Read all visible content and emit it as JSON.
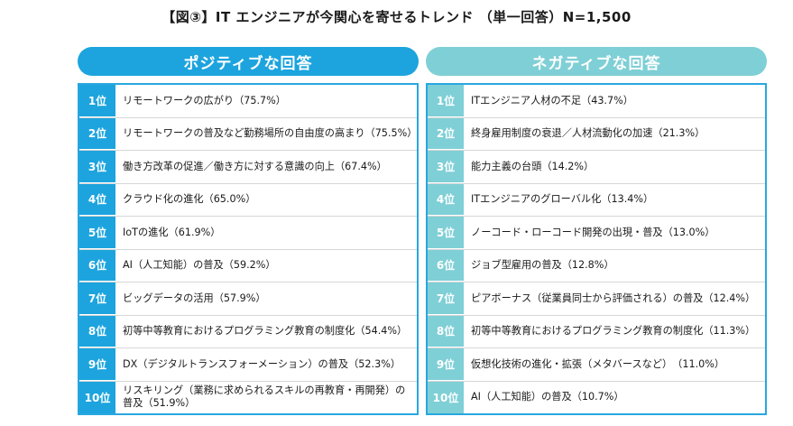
{
  "title": "【図③】IT エンジニアが今関心を寄せるトレンド （単一回答）N=1,500",
  "colors": {
    "positive": "#1da4de",
    "negative": "#7fcfd6",
    "panel_border": "#29a7df",
    "row_divider": "#d6d6d6"
  },
  "chart_data": [
    {
      "type": "table",
      "title": "ポジティブな回答",
      "ranks": [
        "1位",
        "2位",
        "3位",
        "4位",
        "5位",
        "6位",
        "7位",
        "8位",
        "9位",
        "10位"
      ],
      "items": [
        "リモートワークの広がり（75.7%）",
        "リモートワークの普及など勤務場所の自由度の高まり（75.5%）",
        "働き方改革の促進／働き方に対する意識の向上（67.4%）",
        "クラウド化の進化（65.0%）",
        "IoTの進化（61.9%）",
        "AI（人工知能）の普及（59.2%）",
        "ビッグデータの活用（57.9%）",
        "初等中等教育におけるプログラミング教育の制度化（54.4%）",
        "DX（デジタルトランスフォーメーション）の普及（52.3%）",
        "リスキリング（業務に求められるスキルの再教育・再開発）の普及（51.9%）"
      ],
      "values": [
        75.7,
        75.5,
        67.4,
        65.0,
        61.9,
        59.2,
        57.9,
        54.4,
        52.3,
        51.9
      ],
      "unit": "%"
    },
    {
      "type": "table",
      "title": "ネガティブな回答",
      "ranks": [
        "1位",
        "2位",
        "3位",
        "4位",
        "5位",
        "6位",
        "7位",
        "8位",
        "9位",
        "10位"
      ],
      "items": [
        "ITエンジニア人材の不足（43.7%）",
        "終身雇用制度の衰退／人材流動化の加速（21.3%）",
        "能力主義の台頭（14.2%）",
        "ITエンジニアのグローバル化（13.4%）",
        "ノーコード・ローコード開発の出現・普及（13.0%）",
        "ジョブ型雇用の普及（12.8%）",
        "ピアボーナス（従業員同士から評価される）の普及（12.4%）",
        "初等中等教育におけるプログラミング教育の制度化（11.3%）",
        "仮想化技術の進化・拡張（メタバースなど）　（11.0%）",
        "AI（人工知能）の普及（10.7%）"
      ],
      "values": [
        43.7,
        21.3,
        14.2,
        13.4,
        13.0,
        12.8,
        12.4,
        11.3,
        11.0,
        10.7
      ],
      "unit": "%"
    }
  ]
}
